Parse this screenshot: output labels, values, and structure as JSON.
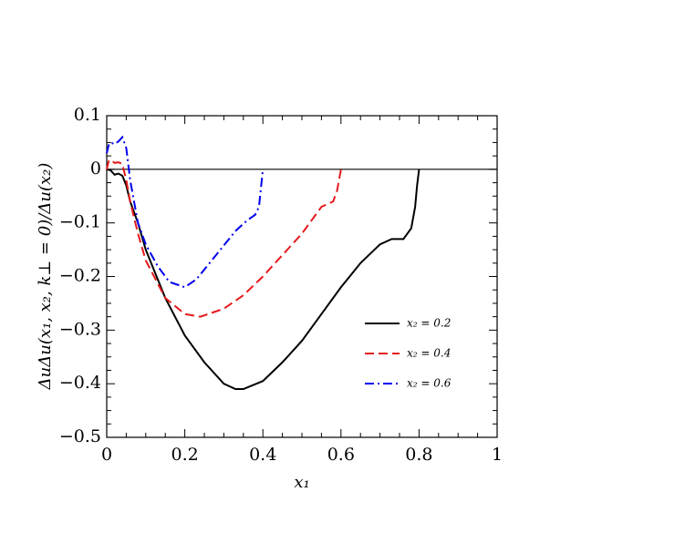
{
  "chart_data": {
    "type": "line",
    "xlabel": "x₁",
    "ylabel": "ΔuΔu(x₁, x₂, k⊥ = 0)/Δu(x₂)",
    "xlim": [
      0,
      1
    ],
    "ylim": [
      -0.5,
      0.1
    ],
    "xticks": [
      0,
      0.2,
      0.4,
      0.6,
      0.8,
      1
    ],
    "yticks": [
      0.1,
      0,
      {
        "value": -0.1,
        "label": "−0.1"
      },
      {
        "value": -0.2,
        "label": "−0.2"
      },
      {
        "value": -0.3,
        "label": "−0.3"
      },
      {
        "value": -0.4,
        "label": "−0.4"
      },
      {
        "value": -0.5,
        "label": "−0.5"
      }
    ],
    "xminorticks": [
      0.05,
      0.1,
      0.15,
      0.25,
      0.3,
      0.35,
      0.45,
      0.5,
      0.55,
      0.65,
      0.7,
      0.75,
      0.85,
      0.9,
      0.95
    ],
    "yminorticks": [
      0.075,
      0.05,
      0.025,
      -0.025,
      -0.05,
      -0.075,
      -0.125,
      -0.15,
      -0.175,
      -0.225,
      -0.25,
      -0.275,
      -0.325,
      -0.35,
      -0.375,
      -0.425,
      -0.45,
      -0.475
    ],
    "hline": 0,
    "legend": "right",
    "series": [
      {
        "name": "x₂ = 0.2",
        "color": "#000000",
        "dash": "solid",
        "x": [
          0,
          0.01,
          0.02,
          0.03,
          0.04,
          0.05,
          0.06,
          0.08,
          0.1,
          0.15,
          0.2,
          0.25,
          0.3,
          0.33,
          0.35,
          0.4,
          0.45,
          0.5,
          0.55,
          0.6,
          0.65,
          0.7,
          0.73,
          0.76,
          0.78,
          0.79,
          0.795,
          0.8
        ],
        "values": [
          0,
          -0.002,
          -0.01,
          -0.008,
          -0.012,
          -0.03,
          -0.06,
          -0.1,
          -0.15,
          -0.24,
          -0.31,
          -0.36,
          -0.4,
          -0.41,
          -0.41,
          -0.395,
          -0.36,
          -0.32,
          -0.27,
          -0.22,
          -0.175,
          -0.14,
          -0.13,
          -0.13,
          -0.11,
          -0.07,
          -0.03,
          0
        ]
      },
      {
        "name": "x₂ = 0.4",
        "color": "#e41a1c",
        "dash": "dashed",
        "x": [
          0,
          0.005,
          0.01,
          0.02,
          0.03,
          0.04,
          0.05,
          0.06,
          0.08,
          0.1,
          0.15,
          0.2,
          0.24,
          0.3,
          0.35,
          0.4,
          0.45,
          0.5,
          0.55,
          0.58,
          0.59,
          0.6
        ],
        "values": [
          0,
          0.015,
          0.018,
          0.012,
          0.013,
          0.01,
          -0.02,
          -0.06,
          -0.12,
          -0.17,
          -0.24,
          -0.27,
          -0.275,
          -0.26,
          -0.235,
          -0.2,
          -0.16,
          -0.12,
          -0.07,
          -0.06,
          -0.04,
          0
        ]
      },
      {
        "name": "x₂ = 0.6",
        "color": "#0000ee",
        "dash": "dashdot",
        "x": [
          0,
          0.005,
          0.01,
          0.02,
          0.03,
          0.04,
          0.05,
          0.06,
          0.07,
          0.08,
          0.1,
          0.13,
          0.16,
          0.2,
          0.23,
          0.28,
          0.33,
          0.36,
          0.38,
          0.39,
          0.4
        ],
        "values": [
          0.03,
          0.045,
          0.05,
          0.047,
          0.052,
          0.06,
          0.04,
          -0.02,
          -0.06,
          -0.1,
          -0.14,
          -0.18,
          -0.21,
          -0.22,
          -0.205,
          -0.16,
          -0.115,
          -0.095,
          -0.085,
          -0.07,
          0
        ]
      }
    ]
  }
}
